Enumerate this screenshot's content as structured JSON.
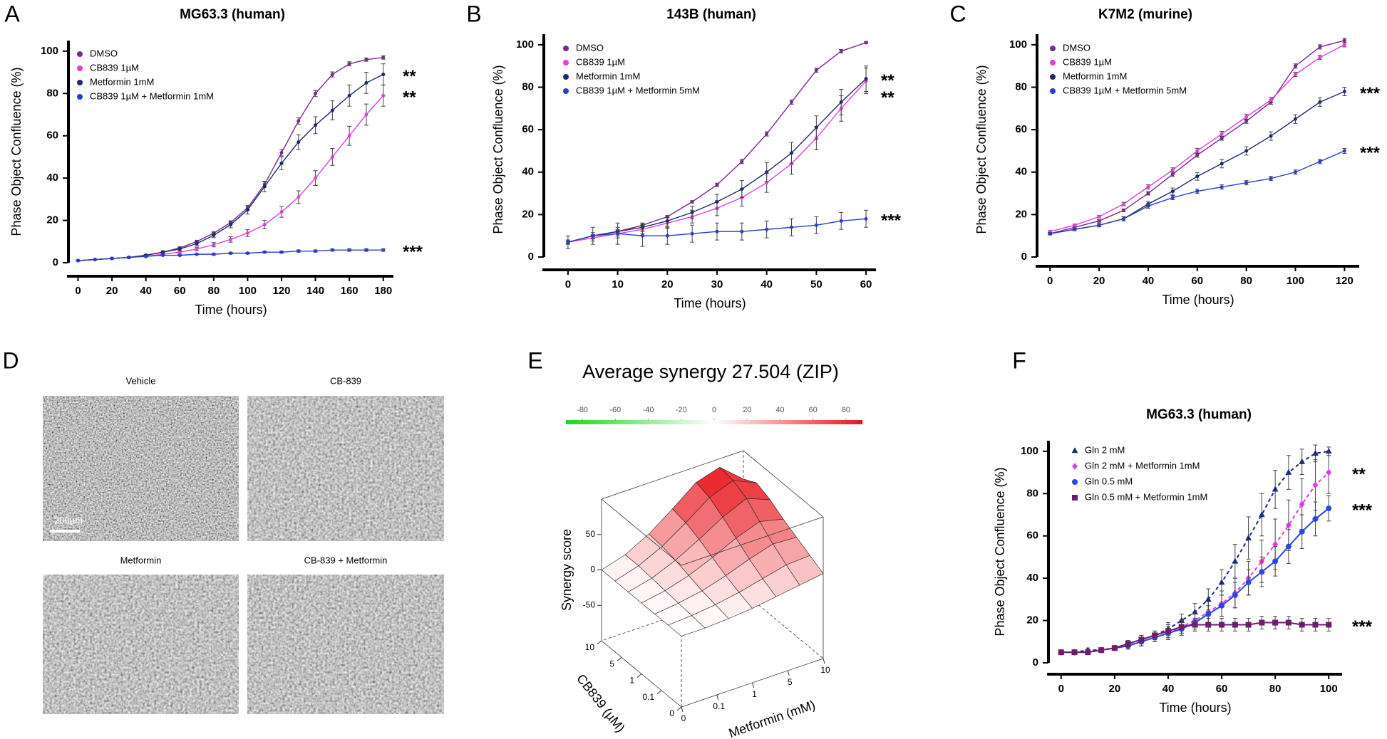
{
  "chart_data": [
    {
      "type": "line",
      "panel": "A",
      "title": "MG63.3 (human)",
      "xlabel": "Time (hours)",
      "ylabel": "Phase Object Confluence (%)",
      "x": [
        0,
        10,
        20,
        30,
        40,
        50,
        60,
        70,
        80,
        90,
        100,
        110,
        120,
        130,
        140,
        150,
        160,
        170,
        180
      ],
      "xlim": [
        -4,
        186
      ],
      "xticks": [
        0,
        20,
        40,
        60,
        80,
        100,
        120,
        140,
        160,
        180
      ],
      "ylim": [
        0,
        105
      ],
      "yticks": [
        0,
        20,
        40,
        60,
        80,
        100
      ],
      "series": [
        {
          "name": "DMSO",
          "color": "#7a2a8a",
          "marker": "circle",
          "values": [
            1,
            1.5,
            2,
            2.5,
            3.5,
            5,
            7,
            10,
            14,
            19,
            26,
            37,
            52,
            67,
            80,
            89,
            94,
            96,
            97
          ],
          "errors": [
            0.2,
            0.2,
            0.2,
            0.3,
            0.3,
            0.4,
            0.5,
            0.6,
            0.7,
            0.8,
            1,
            1.2,
            1.5,
            1.5,
            1.5,
            1.2,
            1,
            0.8,
            0.8
          ]
        },
        {
          "name": "CB839 1µM",
          "color": "#e040d8",
          "marker": "circle",
          "values": [
            1,
            1.5,
            2,
            2.5,
            3,
            4,
            5,
            6.5,
            8.5,
            11,
            14,
            18,
            24,
            31,
            40,
            50,
            60,
            70,
            79
          ],
          "errors": [
            0.2,
            0.2,
            0.3,
            0.3,
            0.4,
            0.5,
            0.6,
            0.8,
            1,
            1.3,
            1.6,
            2,
            2.5,
            3,
            3.5,
            4,
            4.5,
            5,
            5
          ],
          "annotation": "**"
        },
        {
          "name": "Metformin 1mM",
          "color": "#1f2a6b",
          "marker": "circle",
          "values": [
            1,
            1.5,
            2,
            2.5,
            3.5,
            5,
            6.5,
            9,
            13,
            18,
            25,
            36,
            47,
            57,
            65,
            72,
            79,
            85,
            89
          ],
          "errors": [
            0.2,
            0.2,
            0.3,
            0.4,
            0.5,
            0.6,
            0.8,
            1,
            1.2,
            1.5,
            2,
            2.5,
            3,
            3.5,
            4,
            4.5,
            5,
            5,
            5
          ],
          "annotation": "**"
        },
        {
          "name": "CB839 1µM + Metformin 1mM",
          "color": "#2a3ccf",
          "marker": "circle",
          "values": [
            1,
            1.5,
            2,
            2.5,
            3,
            3.5,
            3.5,
            4,
            4,
            4.5,
            4.5,
            5,
            5,
            5.5,
            5.5,
            6,
            6,
            6,
            6
          ],
          "errors": [
            0.2,
            0.2,
            0.2,
            0.3,
            0.3,
            0.3,
            0.3,
            0.3,
            0.4,
            0.4,
            0.4,
            0.4,
            0.5,
            0.5,
            0.5,
            0.5,
            0.6,
            0.6,
            0.6
          ],
          "annotation": "***"
        }
      ]
    },
    {
      "type": "line",
      "panel": "B",
      "title": "143B (human)",
      "xlabel": "Time (hours)",
      "ylabel": "Phase Object Confluence (%)",
      "x": [
        0,
        5,
        10,
        15,
        20,
        25,
        30,
        35,
        40,
        45,
        50,
        55,
        60
      ],
      "xlim": [
        -3,
        62
      ],
      "xticks": [
        0,
        10,
        20,
        30,
        40,
        50,
        60
      ],
      "ylim": [
        0,
        105
      ],
      "yticks": [
        0,
        20,
        40,
        60,
        80,
        100
      ],
      "series": [
        {
          "name": "DMSO",
          "color": "#7a2a8a",
          "marker": "circle",
          "values": [
            7,
            10,
            12,
            15,
            19,
            26,
            34,
            45,
            58,
            73,
            88,
            97,
            101
          ],
          "errors": [
            0.5,
            0.5,
            0.5,
            0.5,
            0.5,
            0.6,
            0.8,
            1,
            1,
            1,
            1,
            0.8,
            0.5
          ]
        },
        {
          "name": "CB839 1µM",
          "color": "#e040d8",
          "marker": "circle",
          "values": [
            7,
            9,
            11,
            13,
            16,
            19,
            23,
            28,
            35,
            44,
            56,
            70,
            83
          ],
          "errors": [
            1,
            1.5,
            2,
            2,
            2.5,
            3,
            3.5,
            4,
            4.5,
            5,
            5.5,
            6,
            6
          ],
          "annotation": "**"
        },
        {
          "name": "Metformin 1mM",
          "color": "#1f2a6b",
          "marker": "circle",
          "values": [
            7,
            10,
            12,
            14,
            17,
            21,
            26,
            32,
            40,
            49,
            61,
            73,
            84
          ],
          "errors": [
            1,
            1.5,
            2,
            2,
            2.5,
            3,
            3.5,
            4,
            4.5,
            5,
            5.5,
            6,
            6
          ],
          "annotation": "**"
        },
        {
          "name": "CB839 1µM + Metformin 5mM",
          "color": "#2a3ccf",
          "marker": "circle",
          "values": [
            7,
            10,
            11,
            10,
            10,
            11,
            12,
            12,
            13,
            14,
            15,
            17,
            18
          ],
          "errors": [
            3,
            4,
            5,
            5,
            4,
            4,
            4,
            4,
            4,
            4,
            4,
            4,
            4
          ],
          "annotation": "***"
        }
      ]
    },
    {
      "type": "line",
      "panel": "C",
      "title": "K7M2 (murine)",
      "xlabel": "Time (hours)",
      "ylabel": "Phase Object Confluence (%)",
      "x": [
        0,
        10,
        20,
        30,
        40,
        50,
        60,
        70,
        80,
        90,
        100,
        110,
        120
      ],
      "xlim": [
        -5,
        126
      ],
      "xticks": [
        0,
        20,
        40,
        60,
        80,
        100,
        120
      ],
      "ylim": [
        0,
        105
      ],
      "yticks": [
        0,
        20,
        40,
        60,
        80,
        100
      ],
      "series": [
        {
          "name": "DMSO",
          "color": "#7a2a8a",
          "marker": "circle",
          "values": [
            11,
            14,
            17,
            22,
            30,
            39,
            48,
            56,
            64,
            73,
            90,
            99,
            102
          ],
          "errors": [
            0.5,
            0.5,
            0.6,
            0.6,
            0.8,
            1,
            1,
            1,
            1,
            1,
            1,
            1,
            1
          ]
        },
        {
          "name": "CB839 1µM",
          "color": "#e040d8",
          "marker": "circle",
          "values": [
            12,
            15,
            19,
            25,
            33,
            41,
            50,
            58,
            66,
            74,
            86,
            94,
            100
          ],
          "errors": [
            0.5,
            0.5,
            0.6,
            0.8,
            1,
            1,
            1.2,
            1.2,
            1.2,
            1.2,
            1,
            1,
            1
          ]
        },
        {
          "name": "Metformin 1mM",
          "color": "#1f2a6b",
          "marker": "circle",
          "values": [
            11,
            13,
            15,
            18,
            25,
            31,
            38,
            44,
            50,
            57,
            65,
            73,
            78
          ],
          "errors": [
            0.5,
            0.6,
            0.8,
            1,
            1.2,
            1.5,
            1.8,
            2,
            2,
            2,
            2,
            2,
            2
          ],
          "annotation": "***"
        },
        {
          "name": "CB839 1µM + Metformin 5mM",
          "color": "#2a3ccf",
          "marker": "circle",
          "values": [
            11,
            13,
            15,
            18,
            24,
            28,
            31,
            33,
            35,
            37,
            40,
            45,
            50
          ],
          "errors": [
            0.5,
            0.6,
            0.8,
            1,
            1,
            1,
            1,
            1,
            1,
            1,
            1,
            1,
            1.2
          ],
          "annotation": "***"
        }
      ]
    },
    {
      "type": "images",
      "panel": "D",
      "labels": [
        "Vehicle",
        "CB-839",
        "Metformin",
        "CB-839 + Metformin"
      ],
      "scale_bar": "200µm"
    },
    {
      "type": "surface",
      "panel": "E",
      "title": "Average synergy 27.504 (ZIP)",
      "colorbar_lim": [
        -90,
        90
      ],
      "colorbar_ticks": [
        -80,
        -60,
        -40,
        -20,
        0,
        20,
        40,
        60,
        80
      ],
      "colormap": [
        "#22d322",
        "#ffffff",
        "#e8141b"
      ],
      "zlabel": "Synergy score",
      "zlim": [
        -100,
        100
      ],
      "zticks": [
        -50,
        0,
        50
      ],
      "xlabel": "Metformin (mM)",
      "x_labels": [
        "0",
        "0.1",
        "1",
        "5",
        "10"
      ],
      "ylabel": "CB839 (µM)",
      "y_labels": [
        "0",
        "0.1",
        "1",
        "5",
        "10"
      ],
      "z": [
        [
          0,
          0,
          2,
          5,
          10,
          15,
          20
        ],
        [
          0,
          2,
          6,
          12,
          20,
          28,
          30
        ],
        [
          0,
          4,
          10,
          20,
          32,
          42,
          40
        ],
        [
          0,
          6,
          16,
          30,
          46,
          58,
          50
        ],
        [
          0,
          8,
          22,
          40,
          60,
          75,
          62
        ],
        [
          0,
          10,
          26,
          48,
          72,
          85,
          70
        ],
        [
          0,
          10,
          28,
          52,
          78,
          88,
          60
        ]
      ]
    },
    {
      "type": "line",
      "panel": "F",
      "title": "MG63.3 (human)",
      "xlabel": "Time (hours)",
      "ylabel": "Phase Object Confluence (%)",
      "x": [
        0,
        5,
        10,
        15,
        20,
        25,
        30,
        35,
        40,
        45,
        50,
        55,
        60,
        65,
        70,
        75,
        80,
        85,
        90,
        95,
        100
      ],
      "xlim": [
        -5,
        105
      ],
      "xticks": [
        0,
        20,
        40,
        60,
        80,
        100
      ],
      "ylim": [
        0,
        105
      ],
      "yticks": [
        0,
        20,
        40,
        60,
        80,
        100
      ],
      "series": [
        {
          "name": "Gln 2 mM",
          "color": "#1a2a80",
          "marker": "triangle",
          "dashed": true,
          "values": [
            5,
            5,
            6,
            6,
            7,
            9,
            11,
            13,
            16,
            20,
            24,
            30,
            38,
            48,
            59,
            70,
            82,
            90,
            95,
            99,
            100
          ],
          "errors": [
            1,
            1,
            1,
            1,
            1,
            1.5,
            2,
            2,
            3,
            3,
            4,
            5,
            6,
            8,
            10,
            10,
            9,
            8,
            6,
            4,
            2
          ]
        },
        {
          "name": "Gln 2 mM  + Metformin 1mM",
          "color": "#e23be0",
          "marker": "diamond",
          "dashed": true,
          "values": [
            5,
            5,
            5,
            6,
            7,
            8,
            10,
            12,
            14,
            17,
            20,
            24,
            28,
            33,
            40,
            48,
            56,
            65,
            75,
            84,
            90
          ],
          "errors": [
            1,
            1,
            1,
            1,
            1,
            1.5,
            2,
            2,
            3,
            3,
            4,
            5,
            6,
            7,
            8,
            10,
            12,
            12,
            12,
            12,
            10
          ],
          "annotation": "**"
        },
        {
          "name": "Gln 0.5 mM",
          "color": "#2a45e8",
          "marker": "circle",
          "values": [
            5,
            5,
            5,
            6,
            7,
            8,
            10,
            12,
            14,
            16,
            19,
            23,
            27,
            32,
            38,
            43,
            48,
            55,
            62,
            68,
            73
          ],
          "errors": [
            1,
            1,
            1,
            1,
            1,
            1.5,
            2,
            2,
            3,
            3,
            4,
            4,
            5,
            6,
            6,
            7,
            7,
            8,
            8,
            8,
            6
          ],
          "annotation": "***"
        },
        {
          "name": "Gln 0.5 mM + Metformin 1mM",
          "color": "#6b1f6b",
          "marker": "square",
          "values": [
            5,
            5,
            5,
            6,
            7,
            9,
            11,
            13,
            15,
            17,
            18,
            18,
            18,
            18,
            18,
            19,
            19,
            19,
            18,
            18,
            18
          ],
          "errors": [
            1,
            1,
            1,
            1,
            1,
            1.5,
            2,
            2,
            3,
            3,
            3,
            3,
            3,
            3,
            3,
            3,
            3,
            3,
            3,
            3,
            3
          ],
          "annotation": "***"
        }
      ]
    }
  ]
}
